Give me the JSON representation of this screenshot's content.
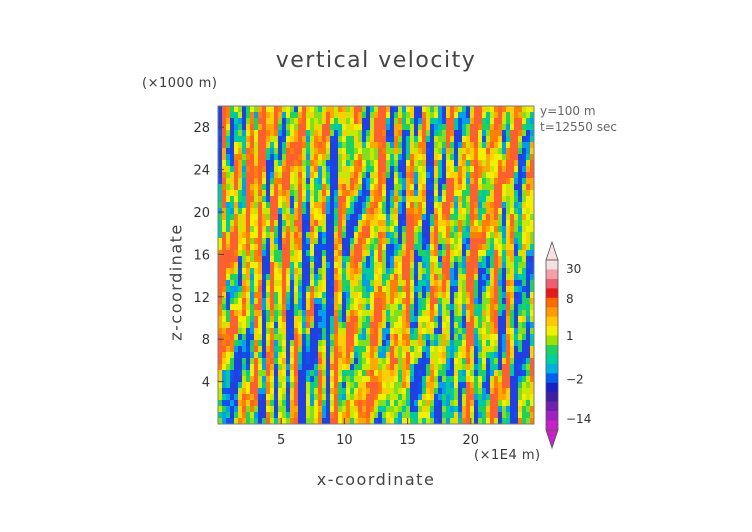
{
  "chart_data": {
    "type": "heatmap",
    "title": "vertical velocity",
    "xlabel": "x-coordinate",
    "ylabel": "z-coordinate",
    "x_unit": "(×1E4 m)",
    "y_unit": "(×1000 m)",
    "annotations": [
      "y=100 m",
      "t=12550 sec"
    ],
    "xlim": [
      0,
      25
    ],
    "ylim": [
      0,
      30
    ],
    "x_ticks": [
      5,
      10,
      15,
      20
    ],
    "y_ticks": [
      4,
      8,
      12,
      16,
      20,
      24,
      28
    ],
    "colorbar": {
      "labels": [
        "30",
        "8",
        "1",
        "−2",
        "−14"
      ],
      "label_values": [
        30,
        8,
        1,
        -2,
        -14
      ],
      "colors": [
        "#f7e0e0",
        "#f2a0a8",
        "#ee6070",
        "#e81a1a",
        "#ff6a00",
        "#ff9a00",
        "#ffc800",
        "#f0f000",
        "#a0e000",
        "#20d060",
        "#00d0a0",
        "#00b0e0",
        "#0060f0",
        "#1a20c8",
        "#4020a0",
        "#7020b0",
        "#a020c0",
        "#c820c8"
      ],
      "extend": "both"
    }
  }
}
